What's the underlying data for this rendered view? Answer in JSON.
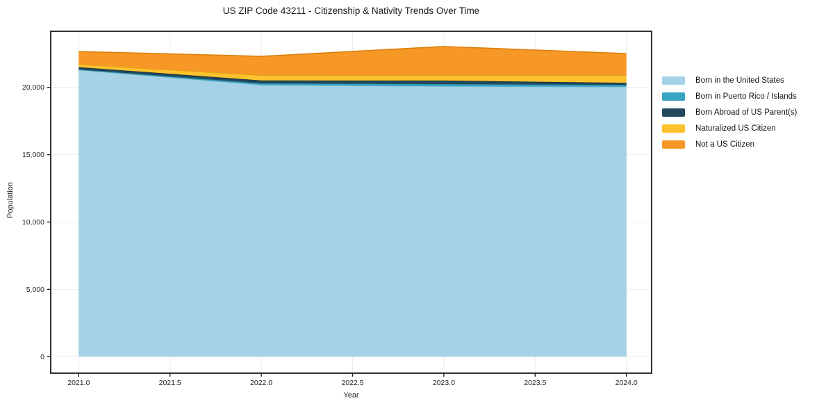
{
  "chart_data": {
    "type": "area",
    "stacked": true,
    "title": "US ZIP Code 43211 - Citizenship & Nativity Trends Over Time",
    "xlabel": "Year",
    "ylabel": "Population",
    "grid": true,
    "legend_position": "right-outside",
    "x": [
      2021,
      2022,
      2023,
      2024
    ],
    "x_ticks": [
      2021.0,
      2021.5,
      2022.0,
      2022.5,
      2023.0,
      2023.5,
      2024.0
    ],
    "x_tick_labels": [
      "2021.0",
      "2021.5",
      "2022.0",
      "2022.5",
      "2023.0",
      "2023.5",
      "2024.0"
    ],
    "y_ticks": [
      0,
      5000,
      10000,
      15000,
      20000
    ],
    "y_tick_labels": [
      "0",
      "5,000",
      "10,000",
      "15,000",
      "20,000"
    ],
    "xlim": [
      2020.85,
      2024.14
    ],
    "ylim": [
      -1220,
      24160
    ],
    "series": [
      {
        "name": "Born in the United States",
        "color": "#a5d2e6",
        "edge": "#88bedb",
        "values": [
          21290,
          20175,
          20075,
          20040
        ]
      },
      {
        "name": "Born in Puerto Rico / Islands",
        "color": "#38a5c2",
        "edge": "#2d8ba5",
        "values": [
          40,
          120,
          170,
          140
        ]
      },
      {
        "name": "Born Abroad of US Parent(s)",
        "color": "#22485c",
        "edge": "#17303e",
        "values": [
          170,
          220,
          260,
          155
        ]
      },
      {
        "name": "Naturalized US Citizen",
        "color": "#fcc22e",
        "edge": "#e0a40f",
        "values": [
          210,
          380,
          400,
          570
        ]
      },
      {
        "name": "Not a US Citizen",
        "color": "#f79726",
        "edge": "#dd7f0d",
        "values": [
          950,
          1410,
          2130,
          1600
        ]
      }
    ],
    "totals": [
      22660,
      22305,
      23035,
      22505
    ],
    "style": {
      "grid_color": "#ebebeb",
      "spine_color": "#1a1a1a",
      "tick_label_color": "#262626",
      "plot_bg": "#ffffff"
    }
  }
}
